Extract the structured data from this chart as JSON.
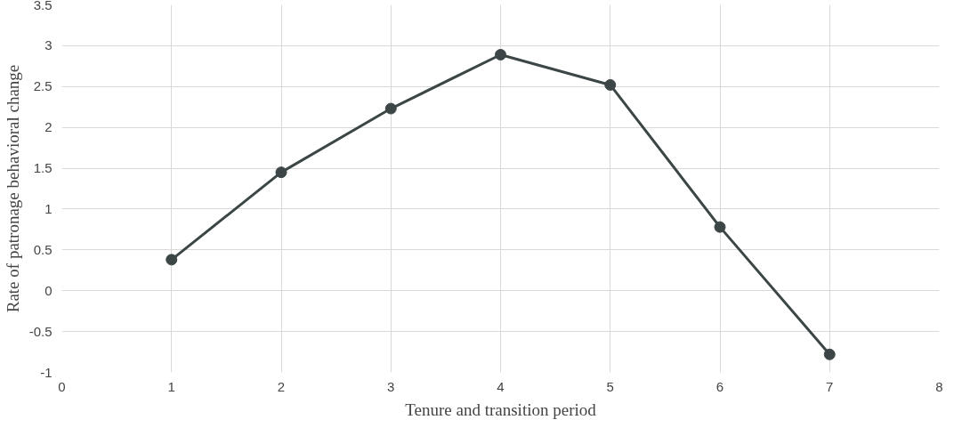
{
  "chart_data": {
    "type": "line",
    "xlabel": "Tenure and transition period",
    "ylabel": "Rate of patronage behavioral change",
    "x": [
      1,
      2,
      3,
      4,
      5,
      6,
      7
    ],
    "series": [
      {
        "color": "#3d4646",
        "values": [
          0.38,
          1.45,
          2.23,
          2.89,
          2.52,
          0.78,
          -0.78
        ]
      }
    ],
    "xlim": [
      0,
      8
    ],
    "xticks": [
      0,
      1,
      2,
      3,
      4,
      5,
      6,
      7,
      8
    ],
    "ylim": [
      -1,
      3.5
    ],
    "yticks": [
      -1,
      -0.5,
      0,
      0.5,
      1,
      1.5,
      2,
      2.5,
      3,
      3.5
    ],
    "grid": true,
    "marker": "circle",
    "line_style": "solid"
  }
}
